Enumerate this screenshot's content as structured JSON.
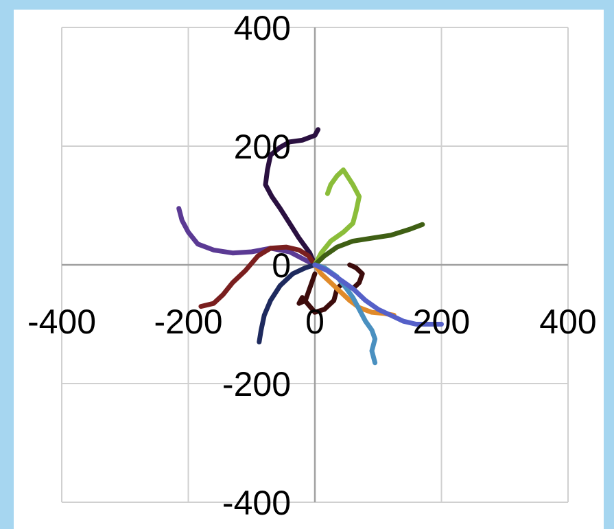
{
  "chart_data": {
    "type": "line",
    "title": "",
    "xlabel": "",
    "ylabel": "",
    "xlim": [
      -400,
      400
    ],
    "ylim": [
      -400,
      400
    ],
    "grid": true,
    "x_ticks": [
      -400,
      -200,
      0,
      200,
      400
    ],
    "y_ticks": [
      400,
      200,
      0,
      -200,
      -400
    ],
    "x_tick_labels": [
      "-400",
      "-200",
      "0",
      "200",
      "400"
    ],
    "y_tick_labels": [
      "400",
      "200",
      "0",
      "-200",
      "-400"
    ],
    "series": [
      {
        "color": "#2a1040",
        "points": [
          [
            0,
            0
          ],
          [
            -8,
            20
          ],
          [
            -25,
            45
          ],
          [
            -40,
            70
          ],
          [
            -55,
            95
          ],
          [
            -68,
            115
          ],
          [
            -78,
            135
          ],
          [
            -75,
            160
          ],
          [
            -70,
            185
          ],
          [
            -55,
            198
          ],
          [
            -40,
            207
          ],
          [
            -20,
            210
          ],
          [
            0,
            218
          ],
          [
            5,
            228
          ]
        ]
      },
      {
        "color": "#5b3a94",
        "points": [
          [
            0,
            0
          ],
          [
            -15,
            8
          ],
          [
            -40,
            22
          ],
          [
            -70,
            28
          ],
          [
            -100,
            22
          ],
          [
            -130,
            20
          ],
          [
            -160,
            25
          ],
          [
            -185,
            35
          ],
          [
            -200,
            55
          ],
          [
            -210,
            75
          ],
          [
            -215,
            95
          ]
        ]
      },
      {
        "color": "#7a1f1f",
        "points": [
          [
            0,
            0
          ],
          [
            -10,
            15
          ],
          [
            -25,
            25
          ],
          [
            -45,
            30
          ],
          [
            -70,
            28
          ],
          [
            -90,
            15
          ],
          [
            -110,
            -10
          ],
          [
            -130,
            -30
          ],
          [
            -145,
            -50
          ],
          [
            -160,
            -65
          ],
          [
            -180,
            -70
          ]
        ]
      },
      {
        "color": "#1e2a5e",
        "points": [
          [
            0,
            0
          ],
          [
            -15,
            -5
          ],
          [
            -35,
            -15
          ],
          [
            -55,
            -35
          ],
          [
            -70,
            -60
          ],
          [
            -80,
            -85
          ],
          [
            -85,
            -110
          ],
          [
            -88,
            -130
          ]
        ]
      },
      {
        "color": "#3d0c0c",
        "points": [
          [
            0,
            -15
          ],
          [
            -5,
            -30
          ],
          [
            -10,
            -45
          ],
          [
            -15,
            -60
          ],
          [
            -25,
            -65
          ],
          [
            -20,
            -55
          ],
          [
            0,
            -80
          ],
          [
            15,
            -75
          ],
          [
            30,
            -60
          ],
          [
            35,
            -40
          ],
          [
            45,
            -30
          ],
          [
            60,
            -40
          ],
          [
            70,
            -30
          ],
          [
            75,
            -15
          ],
          [
            65,
            -5
          ],
          [
            55,
            0
          ]
        ]
      },
      {
        "color": "#8bbd3a",
        "points": [
          [
            0,
            0
          ],
          [
            10,
            20
          ],
          [
            25,
            40
          ],
          [
            45,
            55
          ],
          [
            60,
            70
          ],
          [
            65,
            90
          ],
          [
            70,
            115
          ],
          [
            60,
            135
          ],
          [
            45,
            160
          ],
          [
            35,
            150
          ],
          [
            25,
            135
          ],
          [
            20,
            120
          ]
        ]
      },
      {
        "color": "#3f5f14",
        "points": [
          [
            0,
            0
          ],
          [
            15,
            15
          ],
          [
            35,
            30
          ],
          [
            60,
            40
          ],
          [
            90,
            45
          ],
          [
            120,
            50
          ],
          [
            150,
            60
          ],
          [
            170,
            68
          ]
        ]
      },
      {
        "color": "#e08a2a",
        "points": [
          [
            0,
            0
          ],
          [
            10,
            -15
          ],
          [
            25,
            -30
          ],
          [
            40,
            -45
          ],
          [
            55,
            -60
          ],
          [
            70,
            -72
          ],
          [
            90,
            -80
          ],
          [
            110,
            -82
          ],
          [
            125,
            -85
          ]
        ]
      },
      {
        "color": "#4a90c0",
        "points": [
          [
            0,
            0
          ],
          [
            15,
            -5
          ],
          [
            35,
            -20
          ],
          [
            50,
            -40
          ],
          [
            60,
            -55
          ],
          [
            70,
            -75
          ],
          [
            80,
            -95
          ],
          [
            90,
            -110
          ],
          [
            95,
            -125
          ],
          [
            90,
            -145
          ],
          [
            95,
            -165
          ]
        ]
      },
      {
        "color": "#5560c8",
        "points": [
          [
            0,
            0
          ],
          [
            20,
            -10
          ],
          [
            40,
            -25
          ],
          [
            60,
            -40
          ],
          [
            80,
            -60
          ],
          [
            100,
            -75
          ],
          [
            120,
            -85
          ],
          [
            140,
            -95
          ],
          [
            160,
            -100
          ],
          [
            180,
            -100
          ],
          [
            200,
            -100
          ]
        ]
      }
    ]
  }
}
